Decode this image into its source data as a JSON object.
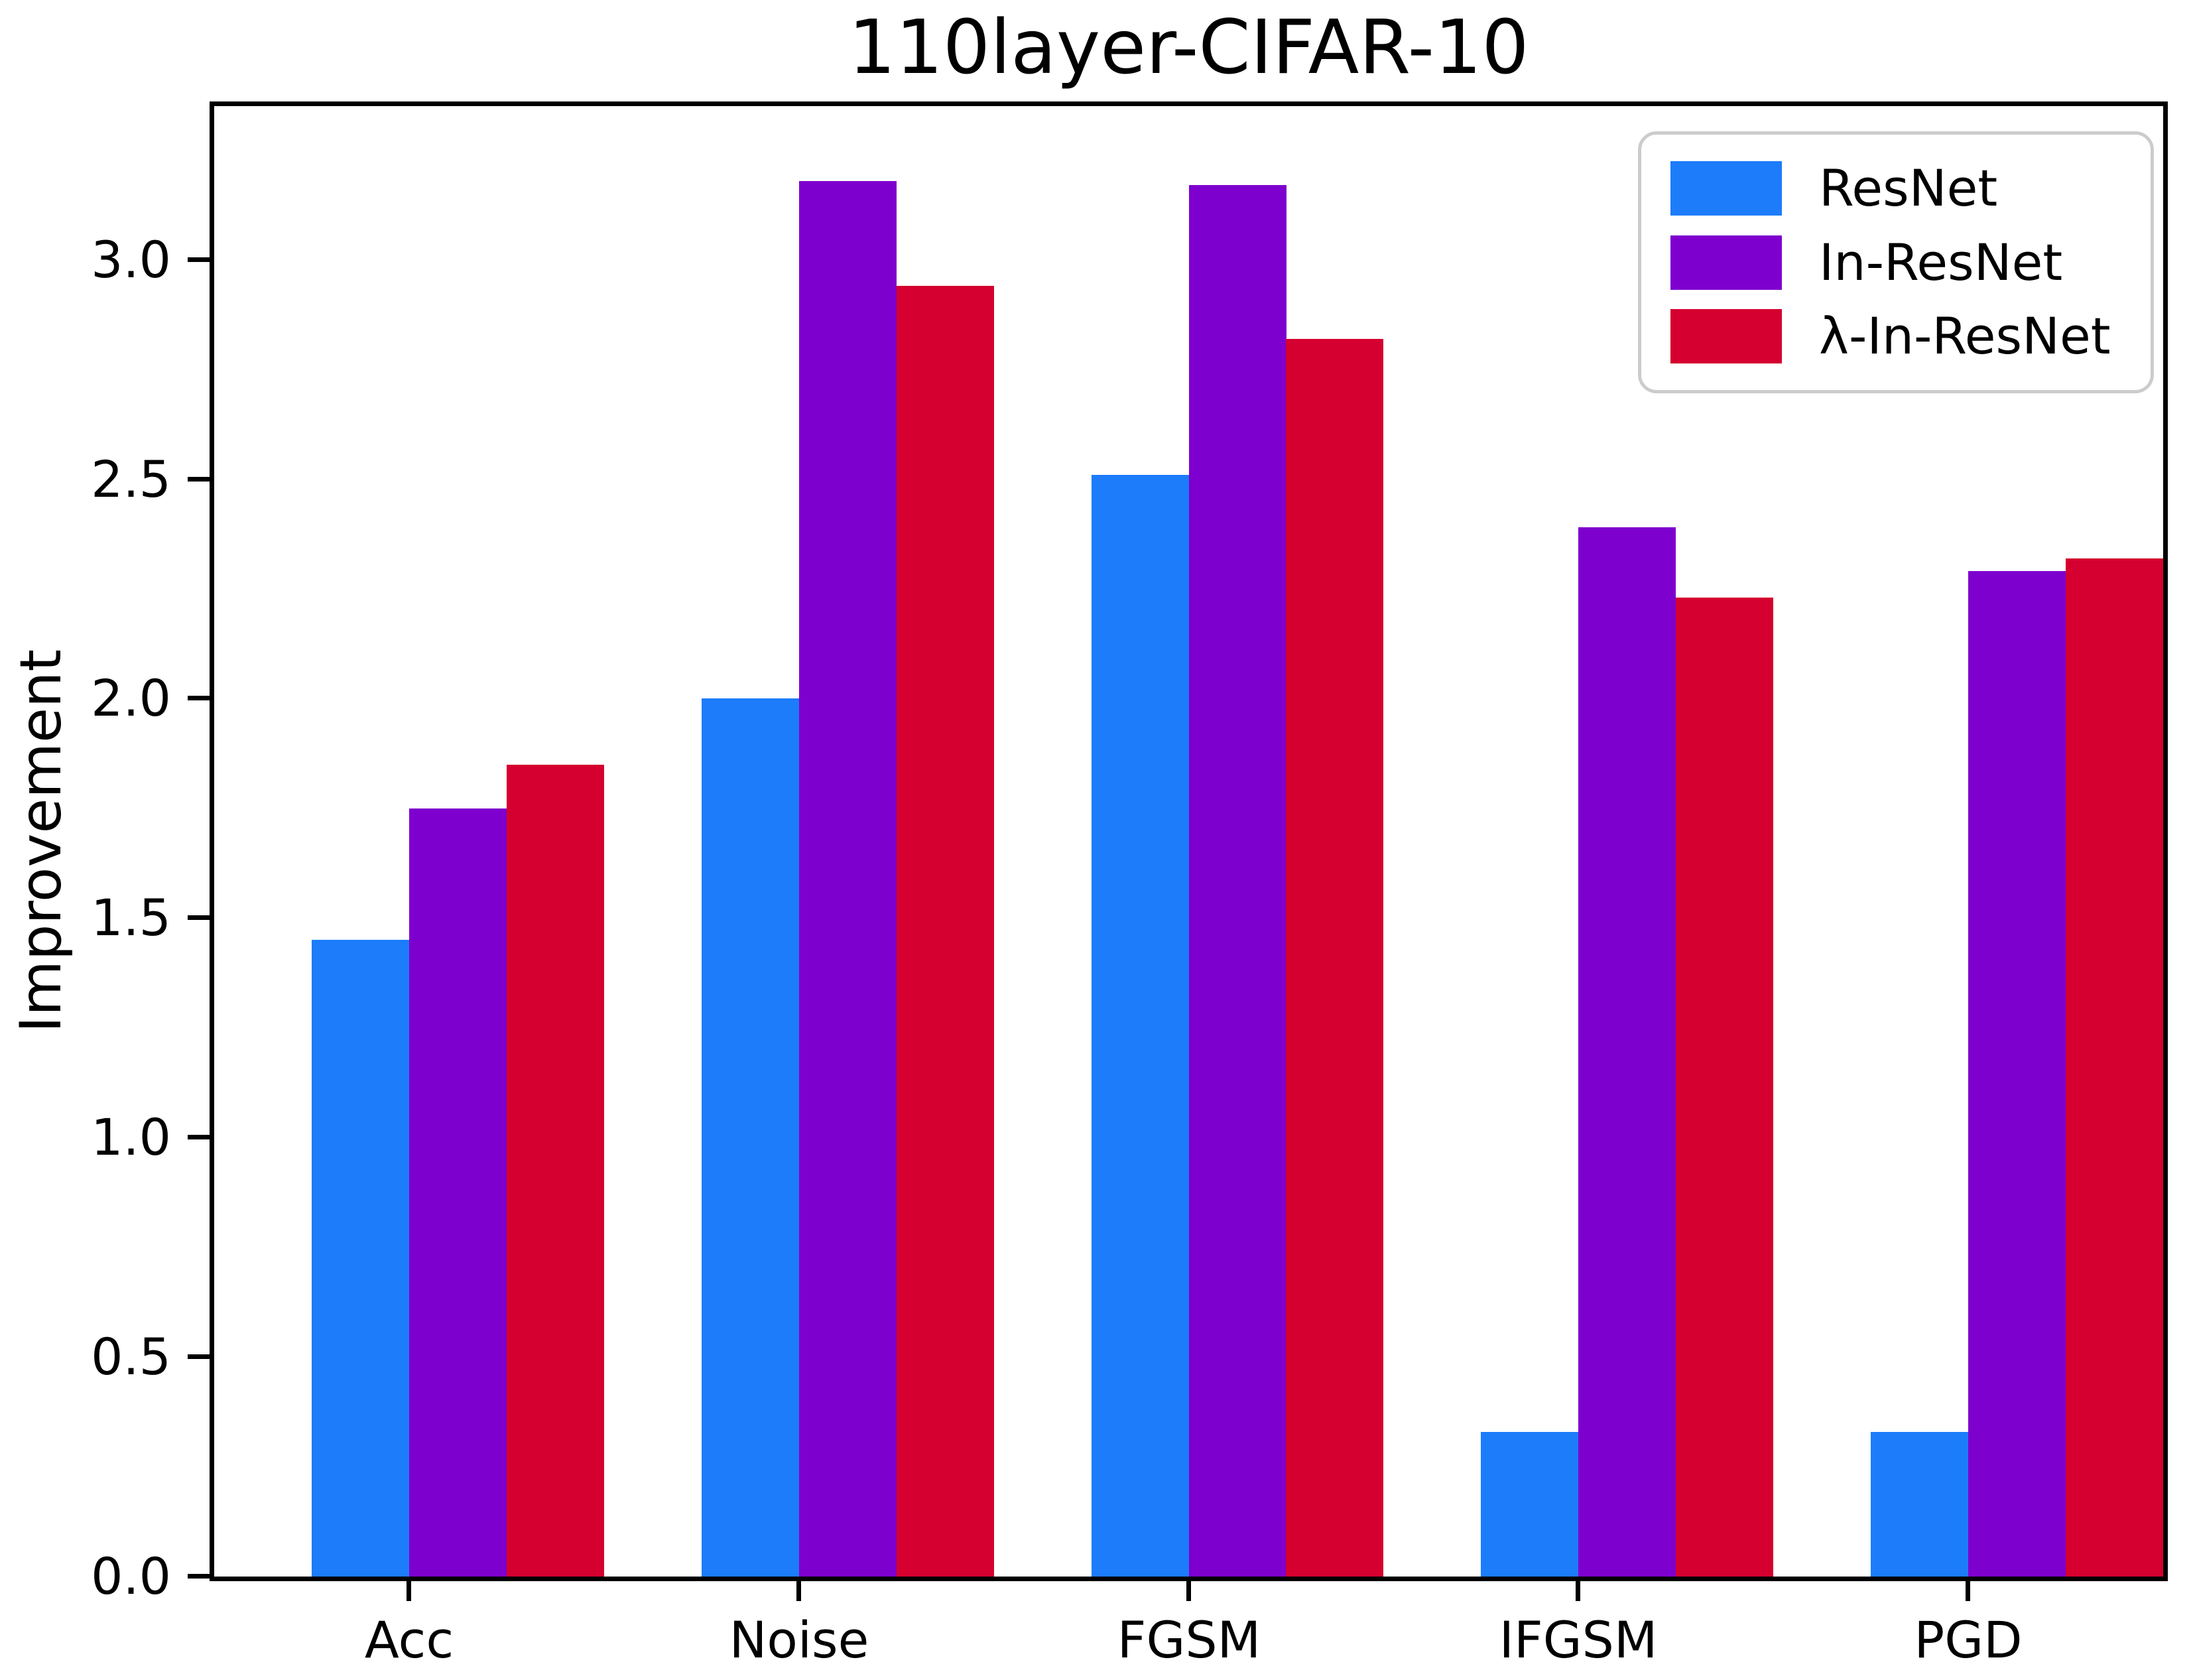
{
  "chart_data": {
    "type": "bar",
    "title": "110layer-CIFAR-10",
    "xlabel": "",
    "ylabel": "Improvement",
    "categories": [
      "Acc",
      "Noise",
      "FGSM",
      "IFGSM",
      "PGD"
    ],
    "series": [
      {
        "name": "ResNet",
        "color": "#1C7CFA",
        "values": [
          1.45,
          2.0,
          2.51,
          0.33,
          0.33
        ]
      },
      {
        "name": "In-ResNet",
        "color": "#7E00CE",
        "values": [
          1.75,
          3.18,
          3.17,
          2.39,
          2.29
        ]
      },
      {
        "name": "λ-In-ResNet",
        "color": "#D5002F",
        "values": [
          1.85,
          2.94,
          2.82,
          2.23,
          2.32
        ]
      }
    ],
    "ylim": [
      0,
      3.35
    ],
    "yticks": [
      0.0,
      0.5,
      1.0,
      1.5,
      2.0,
      2.5,
      3.0
    ],
    "ytick_labels": [
      "0.0",
      "0.5",
      "1.0",
      "1.5",
      "2.0",
      "2.5",
      "3.0"
    ],
    "grid": false,
    "legend_position": "upper right",
    "axis_color": "#000000",
    "background_color": "#ffffff"
  }
}
